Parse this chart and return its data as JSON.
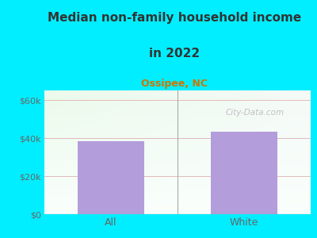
{
  "title_line1": "Median non-family household income",
  "title_line2": "in 2022",
  "subtitle": "Ossipee, NC",
  "categories": [
    "All",
    "White"
  ],
  "values": [
    38500,
    43500
  ],
  "bar_color": "#b39ddb",
  "background_outer": "#00eeff",
  "title_color": "#333333",
  "subtitle_color": "#cc7700",
  "tick_label_color": "#666666",
  "ytick_labels": [
    "$0",
    "$20k",
    "$40k",
    "$60k"
  ],
  "ytick_values": [
    0,
    20000,
    40000,
    60000
  ],
  "ylim": [
    0,
    65000
  ],
  "watermark": "City-Data.com",
  "grid_color": "#ddaaaa",
  "figsize": [
    4.0,
    3.0
  ],
  "dpi": 100,
  "title_fontsize": 11,
  "subtitle_fontsize": 9
}
